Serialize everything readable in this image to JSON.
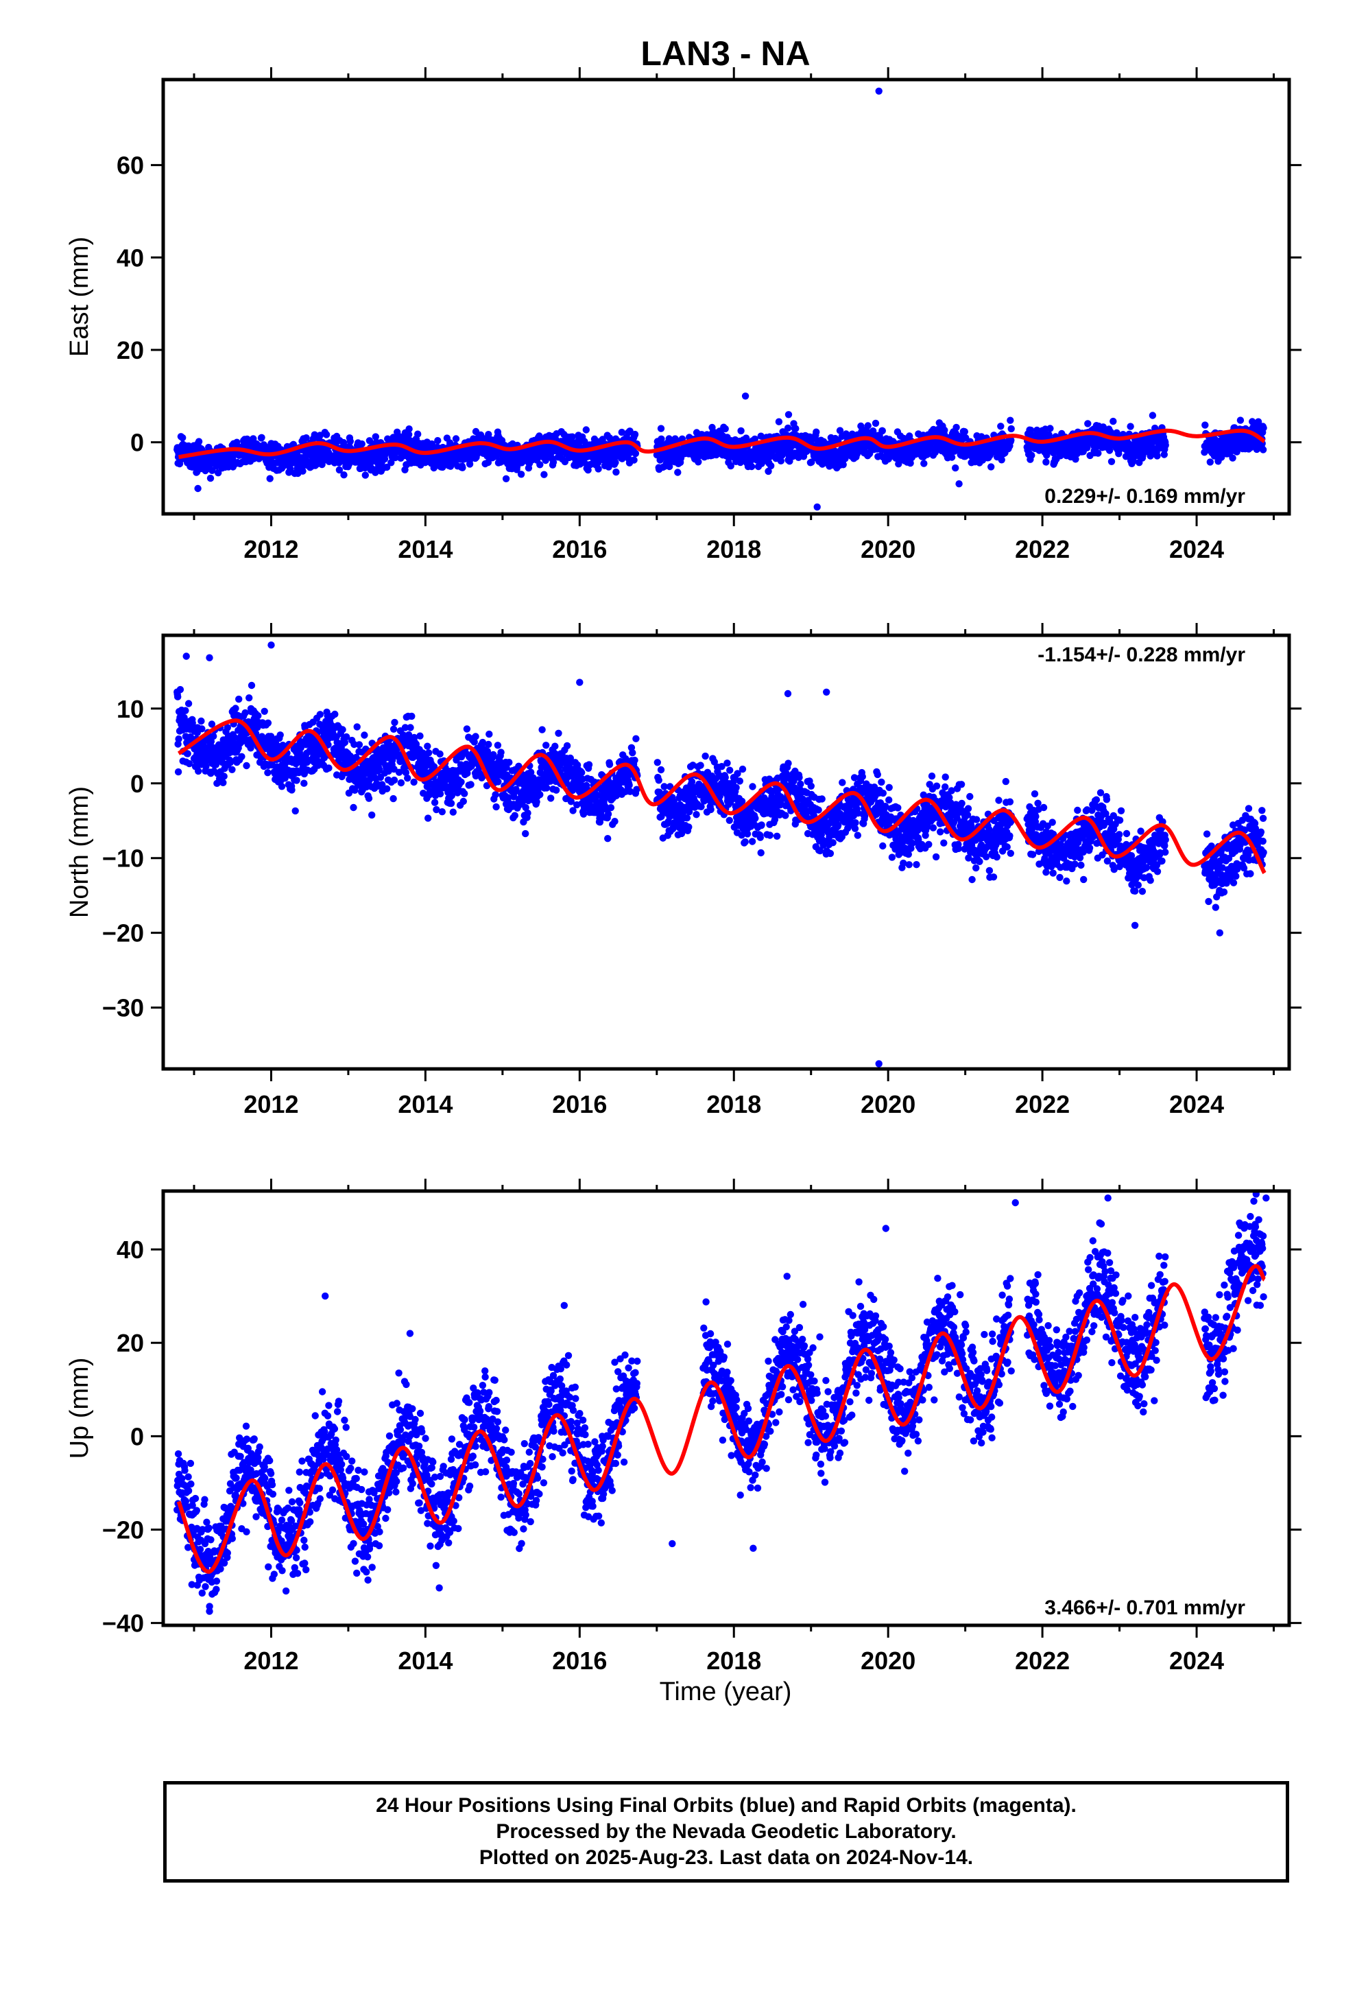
{
  "page": {
    "title": "LAN3 - NA",
    "x_axis_label": "Time (year)"
  },
  "colors": {
    "points": "#0000ff",
    "model": "#ff0000",
    "frame": "#000000"
  },
  "footer": {
    "line1": "24 Hour Positions Using Final Orbits (blue) and Rapid Orbits (magenta).",
    "line2": "Processed by the Nevada Geodetic Laboratory.",
    "line3": "Plotted on 2025-Aug-23. Last data on 2024-Nov-14."
  },
  "chart_data": [
    {
      "type": "scatter",
      "title": "LAN3 - NA",
      "panel": "east",
      "xlabel": "",
      "ylabel": "East (mm)",
      "xlim": [
        2010.6,
        2025.2
      ],
      "ylim": [
        -15.5,
        78.5
      ],
      "xticks": [
        2012,
        2014,
        2016,
        2018,
        2020,
        2022,
        2024
      ],
      "yticks": [
        0,
        20,
        40,
        60
      ],
      "ytick_labels": [
        "0",
        "20",
        "40",
        "60"
      ],
      "rate_label": "0.229+/- 0.169 mm/yr",
      "rate_position": "bottom-right",
      "data_range": [
        2010.78,
        2024.87
      ],
      "trend": {
        "intercept_at_2010_8": -3.0,
        "slope": 0.229
      },
      "seasonal": {
        "annual_amplitude": 1.0
      },
      "noise_sd": 1.6,
      "gaps": [
        [
          2016.75,
          2017.0
        ],
        [
          2021.6,
          2021.8
        ],
        [
          2023.6,
          2024.1
        ]
      ],
      "series": [
        {
          "name": "Final Orbits (blue)",
          "color": "#0000ff"
        },
        {
          "name": "model",
          "color": "#ff0000"
        }
      ],
      "outliers": [
        {
          "x": 2019.88,
          "y": 76.0
        },
        {
          "x": 2019.08,
          "y": -14.0
        },
        {
          "x": 2018.15,
          "y": 10.0
        },
        {
          "x": 2020.92,
          "y": -9.0
        },
        {
          "x": 2011.05,
          "y": -10.0
        }
      ],
      "model_knots": [
        {
          "x": 2010.8,
          "y": -3.2
        },
        {
          "x": 2011.5,
          "y": -1.5
        },
        {
          "x": 2012.0,
          "y": -2.6
        },
        {
          "x": 2012.6,
          "y": -0.2
        },
        {
          "x": 2013.0,
          "y": -1.9
        },
        {
          "x": 2013.6,
          "y": -0.5
        },
        {
          "x": 2014.0,
          "y": -2.3
        },
        {
          "x": 2014.7,
          "y": -0.2
        },
        {
          "x": 2015.1,
          "y": -1.5
        },
        {
          "x": 2015.6,
          "y": 0.1
        },
        {
          "x": 2016.0,
          "y": -1.8
        },
        {
          "x": 2016.6,
          "y": 0.0
        },
        {
          "x": 2016.9,
          "y": -2.0
        },
        {
          "x": 2017.6,
          "y": 0.8
        },
        {
          "x": 2018.0,
          "y": -1.0
        },
        {
          "x": 2018.7,
          "y": 1.0
        },
        {
          "x": 2019.1,
          "y": -1.4
        },
        {
          "x": 2019.7,
          "y": 0.9
        },
        {
          "x": 2020.0,
          "y": -1.0
        },
        {
          "x": 2020.6,
          "y": 1.1
        },
        {
          "x": 2021.0,
          "y": -0.5
        },
        {
          "x": 2021.6,
          "y": 1.4
        },
        {
          "x": 2022.0,
          "y": 0.1
        },
        {
          "x": 2022.6,
          "y": 2.0
        },
        {
          "x": 2023.0,
          "y": 0.8
        },
        {
          "x": 2023.6,
          "y": 2.5
        },
        {
          "x": 2024.0,
          "y": 1.3
        },
        {
          "x": 2024.6,
          "y": 2.5
        },
        {
          "x": 2024.88,
          "y": 0.2
        }
      ]
    },
    {
      "type": "scatter",
      "panel": "north",
      "xlabel": "",
      "ylabel": "North (mm)",
      "xlim": [
        2010.6,
        2025.2
      ],
      "ylim": [
        -38.2,
        19.8
      ],
      "xticks": [
        2012,
        2014,
        2016,
        2018,
        2020,
        2022,
        2024
      ],
      "yticks": [
        10,
        0,
        -10,
        -20,
        -30
      ],
      "ytick_labels": [
        "10",
        "0",
        "−10",
        "−20",
        "−30"
      ],
      "rate_label": "-1.154+/- 0.228 mm/yr",
      "rate_position": "top-right",
      "data_range": [
        2010.78,
        2024.87
      ],
      "trend": {
        "intercept_at_2010_8": 6.0,
        "slope": -1.154
      },
      "seasonal": {
        "annual_amplitude": 2.2
      },
      "noise_sd": 1.9,
      "gaps": [
        [
          2016.75,
          2017.0
        ],
        [
          2021.6,
          2021.8
        ],
        [
          2023.6,
          2024.1
        ]
      ],
      "series": [
        {
          "name": "Final Orbits (blue)",
          "color": "#0000ff"
        },
        {
          "name": "model",
          "color": "#ff0000"
        }
      ],
      "outliers": [
        {
          "x": 2012.0,
          "y": 18.5
        },
        {
          "x": 2010.9,
          "y": 17.0
        },
        {
          "x": 2011.2,
          "y": 16.8
        },
        {
          "x": 2016.0,
          "y": 13.5
        },
        {
          "x": 2019.88,
          "y": -37.5
        },
        {
          "x": 2024.3,
          "y": -20.0
        },
        {
          "x": 2023.2,
          "y": -19.0
        },
        {
          "x": 2018.7,
          "y": 12.0
        },
        {
          "x": 2019.2,
          "y": 12.2
        }
      ],
      "model_knots": [
        {
          "x": 2010.8,
          "y": 4.0
        },
        {
          "x": 2011.55,
          "y": 8.4
        },
        {
          "x": 2012.0,
          "y": 3.2
        },
        {
          "x": 2012.5,
          "y": 7.0
        },
        {
          "x": 2012.95,
          "y": 1.8
        },
        {
          "x": 2013.55,
          "y": 6.2
        },
        {
          "x": 2013.95,
          "y": 0.5
        },
        {
          "x": 2014.55,
          "y": 4.9
        },
        {
          "x": 2014.95,
          "y": -0.9
        },
        {
          "x": 2015.5,
          "y": 3.8
        },
        {
          "x": 2015.95,
          "y": -1.9
        },
        {
          "x": 2016.6,
          "y": 2.5
        },
        {
          "x": 2016.95,
          "y": -2.8
        },
        {
          "x": 2017.5,
          "y": 1.2
        },
        {
          "x": 2017.95,
          "y": -4.0
        },
        {
          "x": 2018.55,
          "y": 0.0
        },
        {
          "x": 2018.95,
          "y": -5.2
        },
        {
          "x": 2019.55,
          "y": -1.3
        },
        {
          "x": 2019.95,
          "y": -6.4
        },
        {
          "x": 2020.5,
          "y": -2.2
        },
        {
          "x": 2020.95,
          "y": -7.5
        },
        {
          "x": 2021.5,
          "y": -3.6
        },
        {
          "x": 2021.95,
          "y": -8.6
        },
        {
          "x": 2022.55,
          "y": -4.6
        },
        {
          "x": 2022.95,
          "y": -9.8
        },
        {
          "x": 2023.55,
          "y": -5.6
        },
        {
          "x": 2023.95,
          "y": -10.9
        },
        {
          "x": 2024.55,
          "y": -6.6
        },
        {
          "x": 2024.88,
          "y": -12.0
        }
      ]
    },
    {
      "type": "scatter",
      "panel": "up",
      "xlabel": "Time (year)",
      "ylabel": "Up (mm)",
      "xlim": [
        2010.6,
        2025.2
      ],
      "ylim": [
        -40.5,
        52.5
      ],
      "xticks": [
        2012,
        2014,
        2016,
        2018,
        2020,
        2022,
        2024
      ],
      "yticks": [
        40,
        20,
        0,
        -20,
        -40
      ],
      "ytick_labels": [
        "40",
        "20",
        "0",
        "−20",
        "−40"
      ],
      "rate_label": "3.466+/- 0.701 mm/yr",
      "rate_position": "bottom-right",
      "data_range": [
        2010.78,
        2024.87
      ],
      "trend": {
        "intercept_at_2010_8": -19.0,
        "slope": 3.466
      },
      "seasonal": {
        "annual_amplitude": 9.5
      },
      "noise_sd": 5.0,
      "gaps": [
        [
          2016.75,
          2017.6
        ],
        [
          2021.6,
          2021.8
        ],
        [
          2023.6,
          2024.1
        ]
      ],
      "series": [
        {
          "name": "Final Orbits (blue)",
          "color": "#0000ff"
        },
        {
          "name": "model",
          "color": "#ff0000"
        }
      ],
      "outliers": [
        {
          "x": 2012.7,
          "y": 30.0
        },
        {
          "x": 2013.8,
          "y": 22.0
        },
        {
          "x": 2015.8,
          "y": 28.0
        },
        {
          "x": 2019.97,
          "y": 44.5
        },
        {
          "x": 2021.65,
          "y": 50.0
        },
        {
          "x": 2022.85,
          "y": 51.0
        },
        {
          "x": 2024.9,
          "y": 51.0
        },
        {
          "x": 2017.2,
          "y": -23.0
        },
        {
          "x": 2018.25,
          "y": -24.0
        },
        {
          "x": 2011.2,
          "y": -37.5
        }
      ],
      "model_knots": [
        {
          "x": 2010.8,
          "y": -14.0
        },
        {
          "x": 2011.2,
          "y": -29.0
        },
        {
          "x": 2011.75,
          "y": -9.5
        },
        {
          "x": 2012.2,
          "y": -25.5
        },
        {
          "x": 2012.7,
          "y": -6.0
        },
        {
          "x": 2013.2,
          "y": -22.0
        },
        {
          "x": 2013.7,
          "y": -2.5
        },
        {
          "x": 2014.2,
          "y": -18.5
        },
        {
          "x": 2014.7,
          "y": 1.0
        },
        {
          "x": 2015.2,
          "y": -15.0
        },
        {
          "x": 2015.7,
          "y": 4.5
        },
        {
          "x": 2016.2,
          "y": -11.5
        },
        {
          "x": 2016.7,
          "y": 8.0
        },
        {
          "x": 2017.2,
          "y": -8.0
        },
        {
          "x": 2017.7,
          "y": 11.5
        },
        {
          "x": 2018.2,
          "y": -4.5
        },
        {
          "x": 2018.7,
          "y": 15.0
        },
        {
          "x": 2019.2,
          "y": -1.0
        },
        {
          "x": 2019.7,
          "y": 18.5
        },
        {
          "x": 2020.2,
          "y": 2.5
        },
        {
          "x": 2020.7,
          "y": 22.0
        },
        {
          "x": 2021.2,
          "y": 6.0
        },
        {
          "x": 2021.7,
          "y": 25.5
        },
        {
          "x": 2022.2,
          "y": 9.5
        },
        {
          "x": 2022.7,
          "y": 29.0
        },
        {
          "x": 2023.2,
          "y": 13.0
        },
        {
          "x": 2023.7,
          "y": 32.5
        },
        {
          "x": 2024.2,
          "y": 16.5
        },
        {
          "x": 2024.7,
          "y": 35.5
        },
        {
          "x": 2024.88,
          "y": 33.5
        }
      ]
    }
  ]
}
